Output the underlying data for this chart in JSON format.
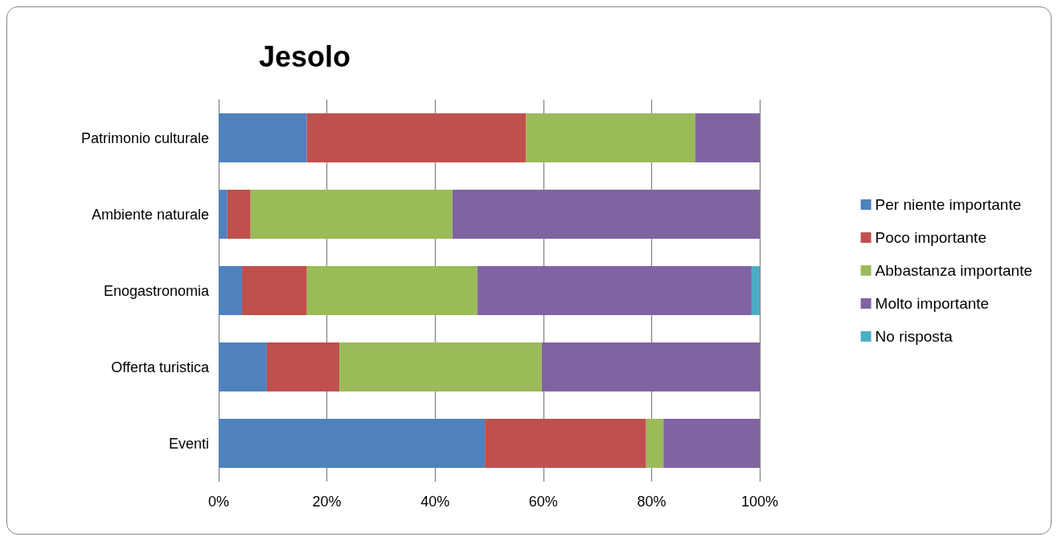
{
  "chart_data": {
    "type": "bar",
    "title": "Jesolo",
    "orientation": "horizontal",
    "stacked": true,
    "categories": [
      "Patrimonio culturale",
      "Ambiente naturale",
      "Enogastronomia",
      "Offerta turistica",
      "Eventi"
    ],
    "series": [
      {
        "name": "Per niente importante",
        "color": "#4f81bd",
        "values": [
          16.3,
          1.6,
          4.3,
          8.9,
          49.2
        ]
      },
      {
        "name": "Poco importante",
        "color": "#c0504d",
        "values": [
          40.5,
          4.3,
          12.0,
          13.4,
          29.8
        ]
      },
      {
        "name": "Abbastanza importante",
        "color": "#9bbb59",
        "values": [
          31.3,
          37.3,
          31.5,
          37.4,
          3.2
        ]
      },
      {
        "name": "Molto importante",
        "color": "#8064a2",
        "values": [
          11.9,
          56.8,
          50.7,
          40.3,
          17.8
        ]
      },
      {
        "name": "No risposta",
        "color": "#4bacc6",
        "values": [
          0,
          0,
          1.5,
          0,
          0
        ]
      }
    ],
    "xlim": [
      0,
      100
    ],
    "xticks": [
      {
        "value": 0,
        "label": "0%"
      },
      {
        "value": 20,
        "label": "20%"
      },
      {
        "value": 40,
        "label": "40%"
      },
      {
        "value": 60,
        "label": "60%"
      },
      {
        "value": 80,
        "label": "80%"
      },
      {
        "value": 100,
        "label": "100%"
      }
    ],
    "grid": "x",
    "legend": "right"
  }
}
